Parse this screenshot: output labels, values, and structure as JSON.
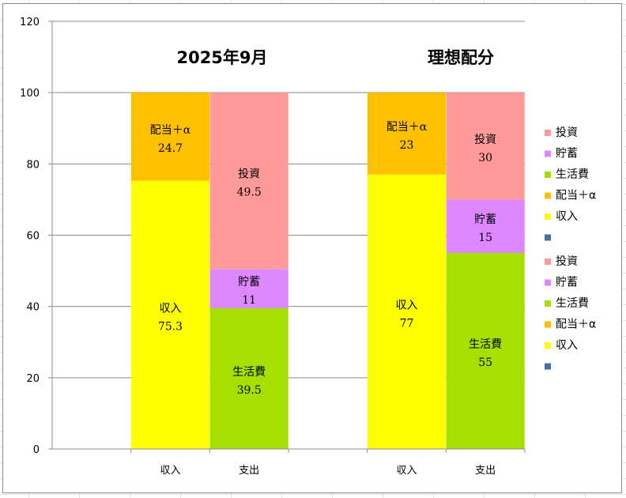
{
  "chart_data": {
    "type": "bar",
    "stacked": true,
    "ylim": [
      0,
      120
    ],
    "yticks": [
      0,
      20,
      40,
      60,
      80,
      100,
      120
    ],
    "grid": true,
    "legend_position": "right",
    "groups": [
      {
        "title": "2025年9月",
        "bars": [
          {
            "category": "収入",
            "segments": [
              {
                "name": "収入",
                "value": 75.3,
                "label": "75.3",
                "color": "#ffff00"
              },
              {
                "name": "配当＋α",
                "value": 24.7,
                "label": "24.7",
                "color": "#ffc000"
              }
            ]
          },
          {
            "category": "支出",
            "segments": [
              {
                "name": "生活費",
                "value": 39.5,
                "label": "39.5",
                "color": "#a6e000"
              },
              {
                "name": "貯蓄",
                "value": 11,
                "label": "11",
                "color": "#dd88ff"
              },
              {
                "name": "投資",
                "value": 49.5,
                "label": "49.5",
                "color": "#ff9a9a"
              }
            ]
          }
        ]
      },
      {
        "title": "理想配分",
        "bars": [
          {
            "category": "収入",
            "segments": [
              {
                "name": "収入",
                "value": 77,
                "label": "77",
                "color": "#ffff00"
              },
              {
                "name": "配当＋α",
                "value": 23,
                "label": "23",
                "color": "#ffc000"
              }
            ]
          },
          {
            "category": "支出",
            "segments": [
              {
                "name": "生活費",
                "value": 55,
                "label": "55",
                "color": "#a6e000"
              },
              {
                "name": "貯蓄",
                "value": 15,
                "label": "15",
                "color": "#dd88ff"
              },
              {
                "name": "投資",
                "value": 30,
                "label": "30",
                "color": "#ff9a9a"
              }
            ]
          }
        ]
      }
    ],
    "legend": [
      {
        "name": "投資",
        "color": "#ff9a9a"
      },
      {
        "name": "貯蓄",
        "color": "#dd88ff"
      },
      {
        "name": "生活費",
        "color": "#a6e000"
      },
      {
        "name": "配当＋α",
        "color": "#ffc000"
      },
      {
        "name": "収入",
        "color": "#ffff00"
      },
      {
        "name": "",
        "color": "#4a6fa5"
      },
      {
        "name": "投資",
        "color": "#ff9a9a"
      },
      {
        "name": "貯蓄",
        "color": "#dd88ff"
      },
      {
        "name": "生活費",
        "color": "#a6e000"
      },
      {
        "name": "配当＋α",
        "color": "#ffc000"
      },
      {
        "name": "収入",
        "color": "#ffff00"
      },
      {
        "name": "",
        "color": "#4a6fa5"
      }
    ]
  }
}
